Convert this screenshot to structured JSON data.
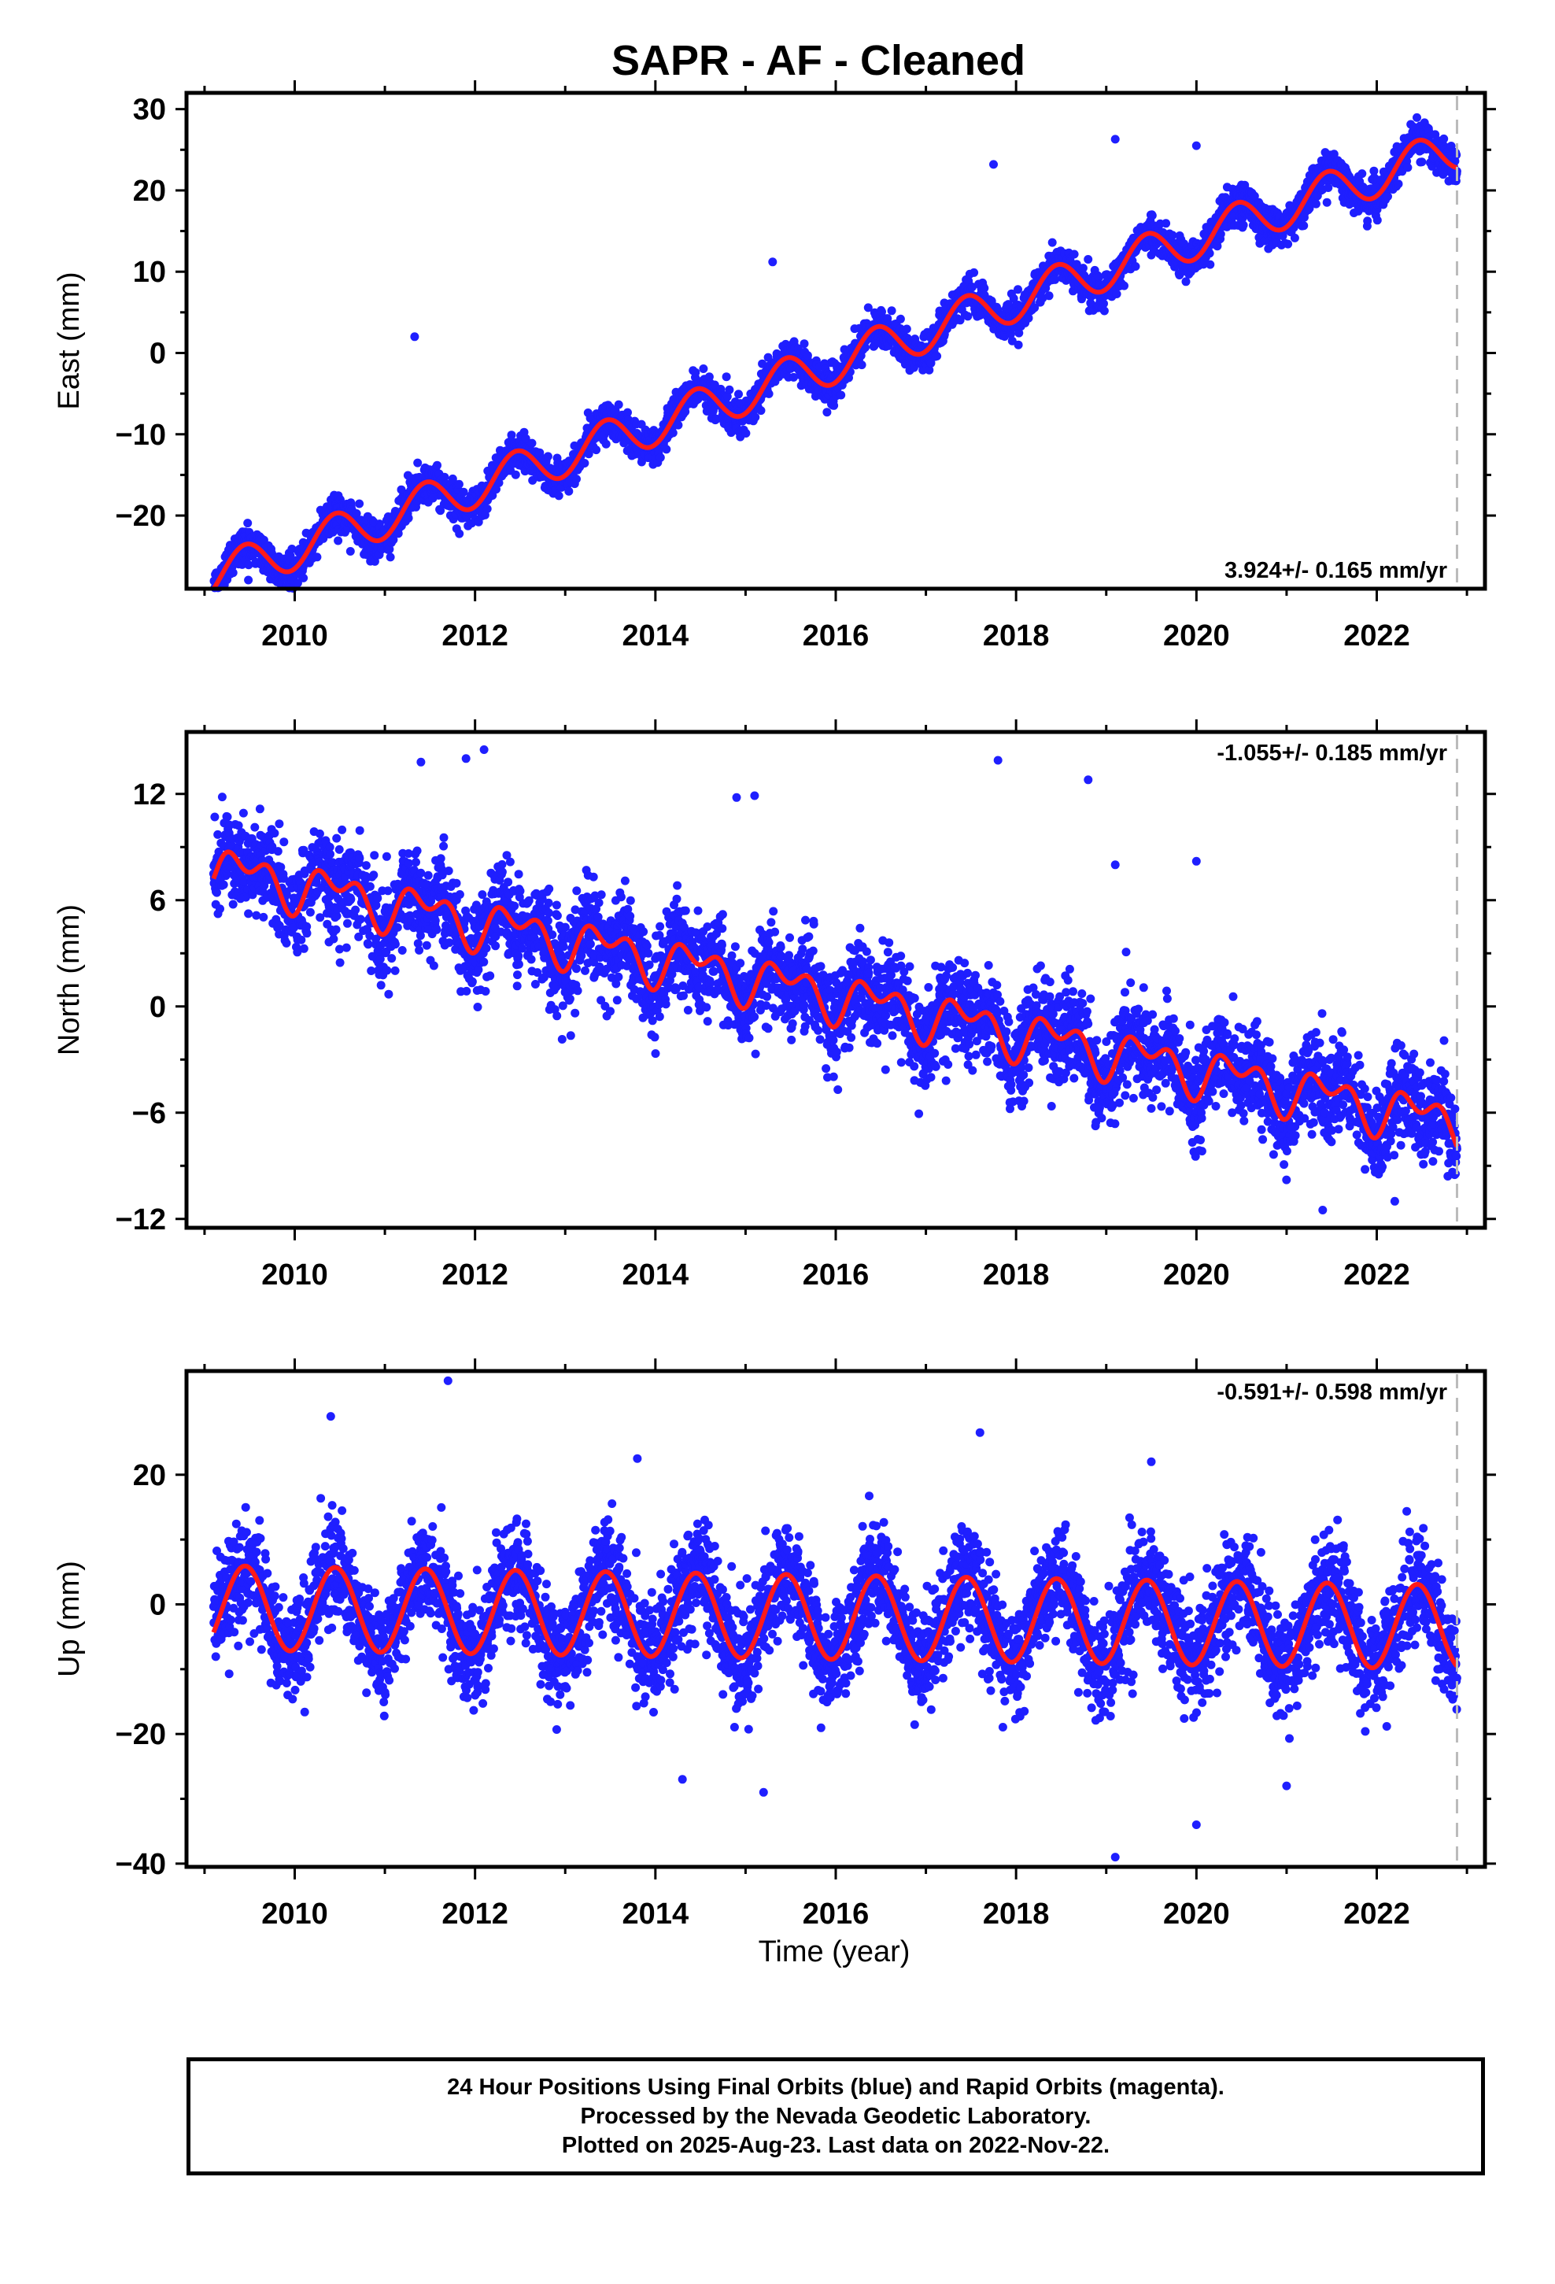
{
  "title": "SAPR  - AF - Cleaned",
  "colors": {
    "data_points": "#1f1fff",
    "model_fit": "#ff1a1a",
    "last_data_marker": "#bbbbbb",
    "frame": "#000000"
  },
  "xlabel": "Time (year)",
  "x_tick_labels": [
    "2010",
    "2012",
    "2014",
    "2016",
    "2018",
    "2020",
    "2022"
  ],
  "footer": {
    "line1": "24 Hour Positions Using Final Orbits (blue) and Rapid Orbits (magenta).",
    "line2": "Processed by the Nevada Geodetic Laboratory.",
    "line3": "Plotted on 2025-Aug-23. Last data on 2022-Nov-22."
  },
  "chart_data": [
    {
      "type": "scatter",
      "component": "east",
      "ylabel": "East (mm)",
      "rate_text": "3.924+/- 0.165 mm/yr",
      "rate_position": "bottom-right",
      "xlim": [
        2008.8,
        2023.2
      ],
      "ylim": [
        -29,
        32
      ],
      "yticks": [
        -20,
        -10,
        0,
        10,
        20,
        30
      ],
      "last_data": 2022.89,
      "data_start": 2009.1,
      "trend_mm_per_yr": 3.924,
      "model_y_at_start": -27.5,
      "model_y_at_end": 25.2,
      "annual_amplitude_mm": 2.6,
      "scatter_sigma_mm": 1.1,
      "outliers": [
        [
          2011.33,
          2.0
        ],
        [
          2017.75,
          23.2
        ],
        [
          2019.1,
          26.3
        ],
        [
          2015.3,
          11.2
        ],
        [
          2020.0,
          25.5
        ]
      ]
    },
    {
      "type": "scatter",
      "component": "north",
      "ylabel": "North (mm)",
      "rate_text": "-1.055+/- 0.185 mm/yr",
      "rate_position": "top-right",
      "xlim": [
        2008.8,
        2023.2
      ],
      "ylim": [
        -12.5,
        15.5
      ],
      "yticks": [
        -12,
        -6,
        0,
        6,
        12
      ],
      "last_data": 2022.89,
      "data_start": 2009.1,
      "trend_mm_per_yr": -1.055,
      "model_y_at_start": 7.8,
      "model_y_at_end": -6.6,
      "annual_amplitude_mm": 1.0,
      "semiannual_amplitude_mm": 0.8,
      "scatter_sigma_mm": 1.3,
      "outliers": [
        [
          2011.4,
          13.8
        ],
        [
          2011.9,
          14.0
        ],
        [
          2012.1,
          14.5
        ],
        [
          2017.8,
          13.9
        ],
        [
          2018.8,
          12.8
        ],
        [
          2014.9,
          11.8
        ],
        [
          2015.1,
          11.9
        ],
        [
          2019.1,
          8.0
        ],
        [
          2020.0,
          8.2
        ],
        [
          2021.4,
          -11.5
        ],
        [
          2022.2,
          -11.0
        ]
      ]
    },
    {
      "type": "scatter",
      "component": "up",
      "ylabel": "Up (mm)",
      "rate_text": "-0.591+/- 0.598 mm/yr",
      "rate_position": "top-right",
      "xlim": [
        2008.8,
        2023.2
      ],
      "ylim": [
        -40.5,
        36
      ],
      "yticks": [
        -40,
        -20,
        0,
        20
      ],
      "last_data": 2022.89,
      "data_start": 2009.1,
      "trend_mm_per_yr": -0.591,
      "model_y_at_start": -0.5,
      "model_y_at_end": -3.5,
      "annual_amplitude_mm": 6.5,
      "scatter_sigma_mm": 4.0,
      "outliers": [
        [
          2011.7,
          34.5
        ],
        [
          2010.4,
          29.0
        ],
        [
          2014.3,
          -27.0
        ],
        [
          2015.2,
          -29.0
        ],
        [
          2019.1,
          -39.0
        ],
        [
          2020.0,
          -34.0
        ],
        [
          2021.0,
          -28.0
        ],
        [
          2017.6,
          26.5
        ],
        [
          2019.5,
          22.0
        ],
        [
          2013.8,
          22.5
        ]
      ]
    }
  ]
}
